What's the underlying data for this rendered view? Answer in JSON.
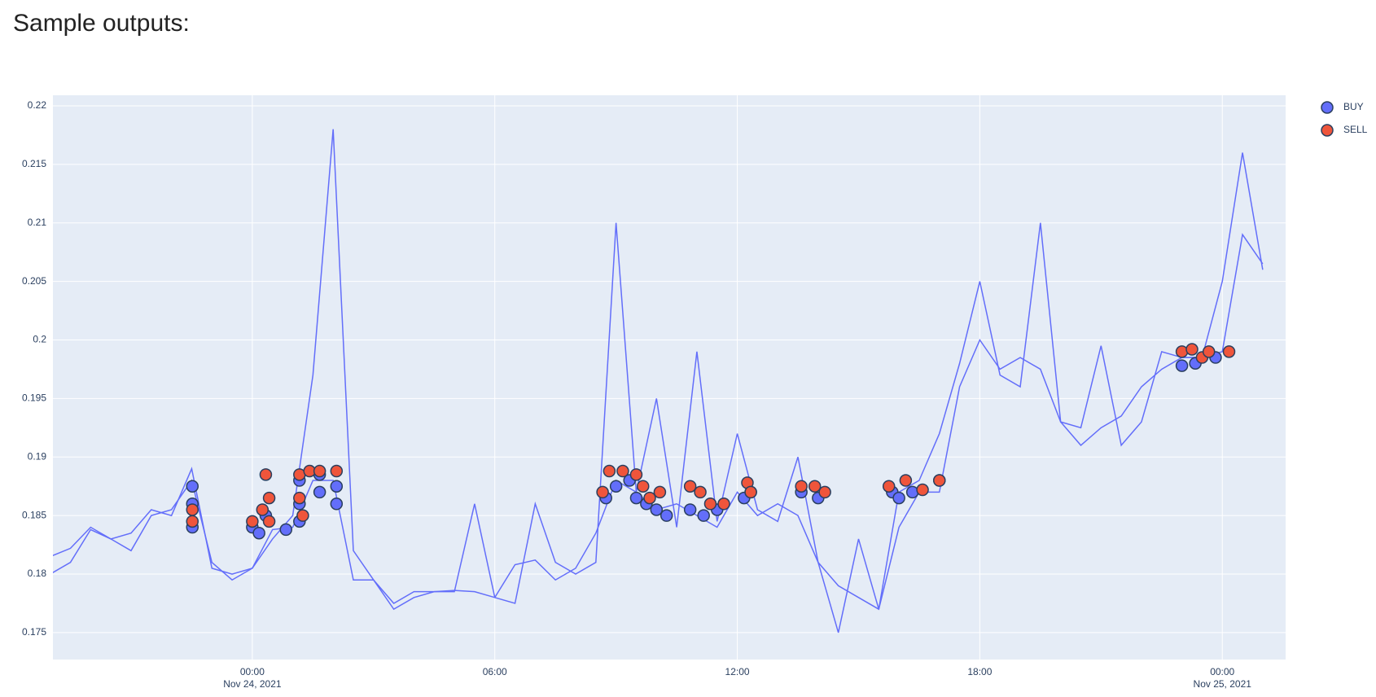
{
  "heading": "Sample outputs:",
  "chart_data": {
    "type": "line",
    "x": [
      "2021-11-23 19:00",
      "2021-11-23 19:30",
      "2021-11-23 20:00",
      "2021-11-23 20:30",
      "2021-11-23 21:00",
      "2021-11-23 21:30",
      "2021-11-23 22:00",
      "2021-11-23 22:30",
      "2021-11-23 23:00",
      "2021-11-23 23:30",
      "2021-11-24 00:00",
      "2021-11-24 00:30",
      "2021-11-24 01:00",
      "2021-11-24 01:30",
      "2021-11-24 02:00",
      "2021-11-24 02:30",
      "2021-11-24 03:00",
      "2021-11-24 03:30",
      "2021-11-24 04:00",
      "2021-11-24 04:30",
      "2021-11-24 05:00",
      "2021-11-24 05:30",
      "2021-11-24 06:00",
      "2021-11-24 06:30",
      "2021-11-24 07:00",
      "2021-11-24 07:30",
      "2021-11-24 08:00",
      "2021-11-24 08:30",
      "2021-11-24 09:00",
      "2021-11-24 09:30",
      "2021-11-24 10:00",
      "2021-11-24 10:30",
      "2021-11-24 11:00",
      "2021-11-24 11:30",
      "2021-11-24 12:00",
      "2021-11-24 12:30",
      "2021-11-24 13:00",
      "2021-11-24 13:30",
      "2021-11-24 14:00",
      "2021-11-24 14:30",
      "2021-11-24 15:00",
      "2021-11-24 15:30",
      "2021-11-24 16:00",
      "2021-11-24 16:30",
      "2021-11-24 17:00",
      "2021-11-24 17:30",
      "2021-11-24 18:00",
      "2021-11-24 18:30",
      "2021-11-24 19:00",
      "2021-11-24 19:30",
      "2021-11-24 20:00",
      "2021-11-24 20:30",
      "2021-11-24 21:00",
      "2021-11-24 21:30",
      "2021-11-24 22:00",
      "2021-11-24 22:30",
      "2021-11-24 23:00",
      "2021-11-24 23:30",
      "2021-11-25 00:00",
      "2021-11-25 00:30",
      "2021-11-25 01:00"
    ],
    "series": [
      {
        "color": "#636efa",
        "values": [
          0.1815,
          0.1822,
          0.184,
          0.183,
          0.1835,
          0.1855,
          0.185,
          0.189,
          0.1805,
          0.18,
          0.1805,
          0.183,
          0.185,
          0.197,
          0.218,
          0.182,
          0.1795,
          0.177,
          0.178,
          0.1785,
          0.1785,
          0.186,
          0.178,
          0.1775,
          0.186,
          0.181,
          0.18,
          0.181,
          0.21,
          0.187,
          0.195,
          0.184,
          0.199,
          0.1845,
          0.192,
          0.1855,
          0.1845,
          0.19,
          0.181,
          0.175,
          0.183,
          0.177,
          0.187,
          0.188,
          0.192,
          0.198,
          0.205,
          0.197,
          0.196,
          0.21,
          0.193,
          0.1925,
          0.1995,
          0.191,
          0.193,
          0.199,
          0.1985,
          0.1985,
          0.205,
          0.216,
          0.206
        ]
      },
      {
        "color": "#636efa",
        "values": [
          0.18,
          0.181,
          0.1838,
          0.183,
          0.182,
          0.185,
          0.1855,
          0.188,
          0.181,
          0.1795,
          0.1805,
          0.1838,
          0.184,
          0.188,
          0.188,
          0.1795,
          0.1795,
          0.1775,
          0.1785,
          0.1785,
          0.1786,
          0.1785,
          0.178,
          0.1808,
          0.1812,
          0.1795,
          0.1805,
          0.1835,
          0.188,
          0.187,
          0.1855,
          0.186,
          0.185,
          0.184,
          0.187,
          0.185,
          0.186,
          0.185,
          0.181,
          0.179,
          0.178,
          0.177,
          0.184,
          0.187,
          0.187,
          0.196,
          0.2,
          0.1975,
          0.1985,
          0.1975,
          0.193,
          0.191,
          0.1925,
          0.1935,
          0.196,
          0.1975,
          0.1985,
          0.1985,
          0.199,
          0.209,
          0.2065
        ]
      },
      {
        "type": "scatter",
        "name": "BUY",
        "color": "#636efa",
        "x": [
          "2021-11-23 22:31",
          "2021-11-23 22:31",
          "2021-11-23 22:31",
          "2021-11-24 00:00",
          "2021-11-24 00:10",
          "2021-11-24 00:20",
          "2021-11-24 00:50",
          "2021-11-24 01:10",
          "2021-11-24 01:10",
          "2021-11-24 01:10",
          "2021-11-24 01:40",
          "2021-11-24 01:40",
          "2021-11-24 02:05",
          "2021-11-24 02:05",
          "2021-11-24 08:45",
          "2021-11-24 09:00",
          "2021-11-24 09:20",
          "2021-11-24 09:30",
          "2021-11-24 09:45",
          "2021-11-24 10:00",
          "2021-11-24 10:15",
          "2021-11-24 10:50",
          "2021-11-24 11:10",
          "2021-11-24 11:30",
          "2021-11-24 12:10",
          "2021-11-24 12:20",
          "2021-11-24 13:35",
          "2021-11-24 14:00",
          "2021-11-24 15:50",
          "2021-11-24 16:00",
          "2021-11-24 16:20",
          "2021-11-24 17:00",
          "2021-11-24 23:00",
          "2021-11-24 23:20",
          "2021-11-24 23:50"
        ],
        "values": [
          0.1875,
          0.186,
          0.184,
          0.184,
          0.1835,
          0.185,
          0.1838,
          0.1845,
          0.186,
          0.188,
          0.187,
          0.1885,
          0.186,
          0.1875,
          0.1865,
          0.1875,
          0.188,
          0.1865,
          0.186,
          0.1855,
          0.185,
          0.1855,
          0.185,
          0.1855,
          0.1865,
          0.187,
          0.187,
          0.1865,
          0.187,
          0.1865,
          0.187,
          0.188,
          0.1978,
          0.198,
          0.1985
        ]
      },
      {
        "type": "scatter",
        "name": "SELL",
        "color": "#ef553b",
        "x": [
          "2021-11-23 22:31",
          "2021-11-23 22:31",
          "2021-11-24 00:00",
          "2021-11-24 00:15",
          "2021-11-24 00:20",
          "2021-11-24 00:25",
          "2021-11-24 00:25",
          "2021-11-24 01:10",
          "2021-11-24 01:10",
          "2021-11-24 01:15",
          "2021-11-24 01:25",
          "2021-11-24 01:40",
          "2021-11-24 02:05",
          "2021-11-24 08:40",
          "2021-11-24 08:50",
          "2021-11-24 09:10",
          "2021-11-24 09:30",
          "2021-11-24 09:40",
          "2021-11-24 09:50",
          "2021-11-24 10:05",
          "2021-11-24 10:50",
          "2021-11-24 11:05",
          "2021-11-24 11:20",
          "2021-11-24 11:40",
          "2021-11-24 12:15",
          "2021-11-24 12:20",
          "2021-11-24 13:35",
          "2021-11-24 13:55",
          "2021-11-24 14:10",
          "2021-11-24 15:45",
          "2021-11-24 16:10",
          "2021-11-24 16:35",
          "2021-11-24 17:00",
          "2021-11-24 23:00",
          "2021-11-24 23:15",
          "2021-11-24 23:30",
          "2021-11-24 23:40",
          "2021-11-25 00:10"
        ],
        "values": [
          0.1855,
          0.1845,
          0.1845,
          0.1855,
          0.1885,
          0.1865,
          0.1845,
          0.1865,
          0.1885,
          0.185,
          0.1888,
          0.1888,
          0.1888,
          0.187,
          0.1888,
          0.1888,
          0.1885,
          0.1875,
          0.1865,
          0.187,
          0.1875,
          0.187,
          0.186,
          0.186,
          0.1878,
          0.187,
          0.1875,
          0.1875,
          0.187,
          0.1875,
          0.188,
          0.1872,
          0.188,
          0.199,
          0.1992,
          0.1985,
          0.199,
          0.199
        ]
      }
    ],
    "xlim": [
      "2021-11-23 19:04",
      "2021-11-25 01:34"
    ],
    "xticks": [
      {
        "value": "2021-11-24 00:00",
        "label": [
          "00:00",
          "Nov 24, 2021"
        ]
      },
      {
        "value": "2021-11-24 06:00",
        "label": "06:00"
      },
      {
        "value": "2021-11-24 12:00",
        "label": "12:00"
      },
      {
        "value": "2021-11-24 18:00",
        "label": "18:00"
      },
      {
        "value": "2021-11-25 00:00",
        "label": [
          "00:00",
          "Nov 25, 2021"
        ]
      }
    ],
    "ylim": [
      0.1727,
      0.2209
    ],
    "yticks": [
      0.175,
      0.18,
      0.185,
      0.19,
      0.195,
      0.2,
      0.205,
      0.21,
      0.215,
      0.22
    ],
    "grid": true,
    "legend": "outside-top-right"
  }
}
